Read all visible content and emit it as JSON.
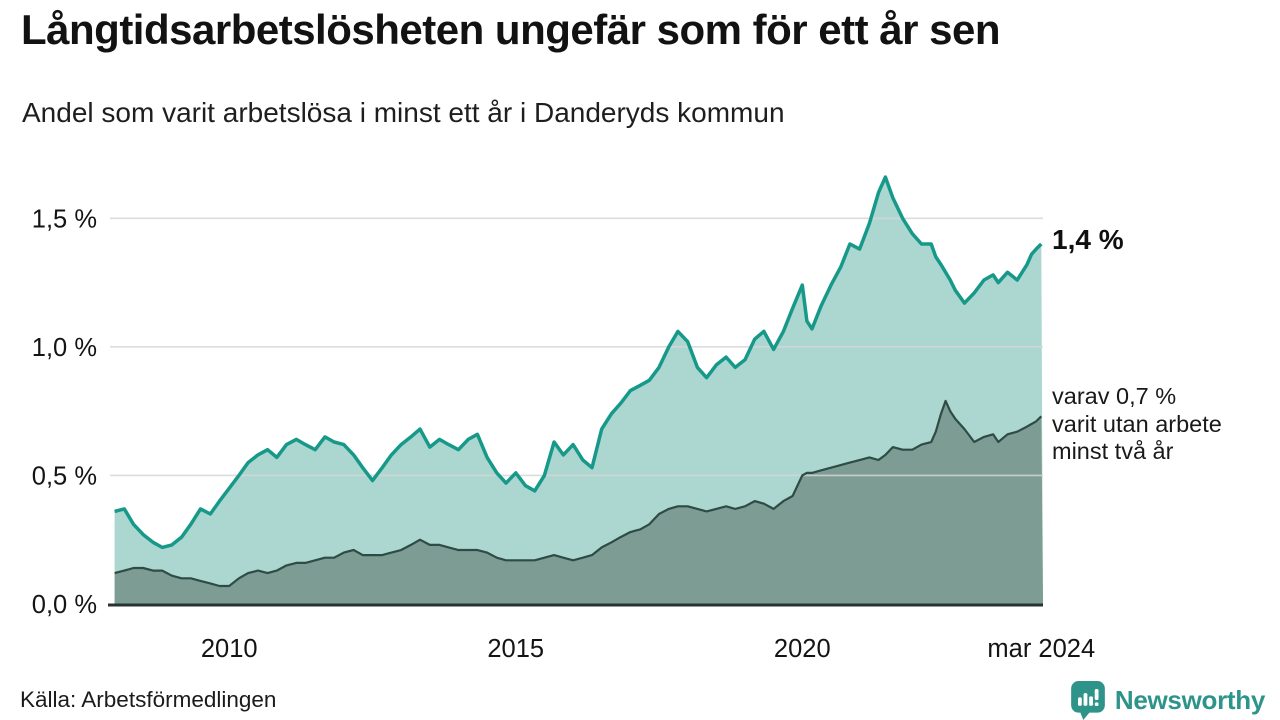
{
  "header": {
    "title": "Långtidsarbetslösheten ungefär som för ett år sen",
    "subtitle": "Andel som varit arbetslösa i minst ett år i Danderyds kommun"
  },
  "annotations": {
    "latest_total_label": "1,4 %",
    "note_lines": [
      "varav 0,7 %",
      "varit utan arbete",
      "minst två år"
    ]
  },
  "footer": {
    "source_label": "Källa: Arbetsförmedlingen"
  },
  "branding": {
    "wordmark": "Newsworthy",
    "icon": "bar-chart-speech-bubble-icon",
    "color": "#2e948a"
  },
  "colors": {
    "series1_line": "#17998a",
    "series1_fill": "#abd7d0",
    "series2_line": "#2e4c45",
    "series2_fill": "#7d9d94",
    "gridline": "#d6d6d6",
    "baseline": "#26332f",
    "text": "#141414"
  },
  "chart_data": {
    "type": "area",
    "title": "Långtidsarbetslösheten ungefär som för ett år sen",
    "subtitle": "Andel som varit arbetslösa i minst ett år i Danderyds kommun",
    "xlabel": "",
    "ylabel": "",
    "grid": "horizontal",
    "legend": "direct-labels-right",
    "x_axis": {
      "min": 2007.92,
      "max": 2024.2,
      "ticks": [
        {
          "value": 2010,
          "label": "2010"
        },
        {
          "value": 2015,
          "label": "2015"
        },
        {
          "value": 2020,
          "label": "2020"
        },
        {
          "value": 2024.17,
          "label": "mar 2024"
        }
      ]
    },
    "y_axis": {
      "min": 0,
      "max": 1.75,
      "ticks": [
        {
          "value": 0.0,
          "label": "0,0 %"
        },
        {
          "value": 0.5,
          "label": "0,5 %"
        },
        {
          "value": 1.0,
          "label": "1,0 %"
        },
        {
          "value": 1.5,
          "label": "1,5 %"
        }
      ]
    },
    "series": [
      {
        "name": "Andel arbetslösa minst ett år",
        "line_color": "#17998a",
        "fill_color": "#abd7d0",
        "line_width": 3.5,
        "latest_value_pct": 1.4
      },
      {
        "name": "varav utan arbete minst två år",
        "line_color": "#2e4c45",
        "fill_color": "#7d9d94",
        "line_width": 2.2,
        "latest_value_pct": 0.7
      }
    ],
    "columns": [
      "year_decimal",
      "share_min_one_year_pct",
      "share_min_two_years_pct"
    ],
    "points": [
      [
        2008.0,
        0.36,
        0.12
      ],
      [
        2008.17,
        0.37,
        0.13
      ],
      [
        2008.33,
        0.31,
        0.14
      ],
      [
        2008.5,
        0.27,
        0.14
      ],
      [
        2008.67,
        0.24,
        0.13
      ],
      [
        2008.83,
        0.22,
        0.13
      ],
      [
        2009.0,
        0.23,
        0.11
      ],
      [
        2009.17,
        0.26,
        0.1
      ],
      [
        2009.33,
        0.31,
        0.1
      ],
      [
        2009.5,
        0.37,
        0.09
      ],
      [
        2009.67,
        0.35,
        0.08
      ],
      [
        2009.83,
        0.4,
        0.07
      ],
      [
        2010.0,
        0.45,
        0.07
      ],
      [
        2010.17,
        0.5,
        0.1
      ],
      [
        2010.33,
        0.55,
        0.12
      ],
      [
        2010.5,
        0.58,
        0.13
      ],
      [
        2010.67,
        0.6,
        0.12
      ],
      [
        2010.83,
        0.57,
        0.13
      ],
      [
        2011.0,
        0.62,
        0.15
      ],
      [
        2011.17,
        0.64,
        0.16
      ],
      [
        2011.33,
        0.62,
        0.16
      ],
      [
        2011.5,
        0.6,
        0.17
      ],
      [
        2011.67,
        0.65,
        0.18
      ],
      [
        2011.83,
        0.63,
        0.18
      ],
      [
        2012.0,
        0.62,
        0.2
      ],
      [
        2012.17,
        0.58,
        0.21
      ],
      [
        2012.33,
        0.53,
        0.19
      ],
      [
        2012.5,
        0.48,
        0.19
      ],
      [
        2012.67,
        0.53,
        0.19
      ],
      [
        2012.83,
        0.58,
        0.2
      ],
      [
        2013.0,
        0.62,
        0.21
      ],
      [
        2013.17,
        0.65,
        0.23
      ],
      [
        2013.33,
        0.68,
        0.25
      ],
      [
        2013.5,
        0.61,
        0.23
      ],
      [
        2013.67,
        0.64,
        0.23
      ],
      [
        2013.83,
        0.62,
        0.22
      ],
      [
        2014.0,
        0.6,
        0.21
      ],
      [
        2014.17,
        0.64,
        0.21
      ],
      [
        2014.33,
        0.66,
        0.21
      ],
      [
        2014.5,
        0.57,
        0.2
      ],
      [
        2014.67,
        0.51,
        0.18
      ],
      [
        2014.83,
        0.47,
        0.17
      ],
      [
        2015.0,
        0.51,
        0.17
      ],
      [
        2015.17,
        0.46,
        0.17
      ],
      [
        2015.33,
        0.44,
        0.17
      ],
      [
        2015.5,
        0.5,
        0.18
      ],
      [
        2015.67,
        0.63,
        0.19
      ],
      [
        2015.83,
        0.58,
        0.18
      ],
      [
        2016.0,
        0.62,
        0.17
      ],
      [
        2016.17,
        0.56,
        0.18
      ],
      [
        2016.33,
        0.53,
        0.19
      ],
      [
        2016.5,
        0.68,
        0.22
      ],
      [
        2016.67,
        0.74,
        0.24
      ],
      [
        2016.83,
        0.78,
        0.26
      ],
      [
        2017.0,
        0.83,
        0.28
      ],
      [
        2017.17,
        0.85,
        0.29
      ],
      [
        2017.33,
        0.87,
        0.31
      ],
      [
        2017.5,
        0.92,
        0.35
      ],
      [
        2017.67,
        1.0,
        0.37
      ],
      [
        2017.83,
        1.06,
        0.38
      ],
      [
        2018.0,
        1.02,
        0.38
      ],
      [
        2018.17,
        0.92,
        0.37
      ],
      [
        2018.33,
        0.88,
        0.36
      ],
      [
        2018.5,
        0.93,
        0.37
      ],
      [
        2018.67,
        0.96,
        0.38
      ],
      [
        2018.83,
        0.92,
        0.37
      ],
      [
        2019.0,
        0.95,
        0.38
      ],
      [
        2019.17,
        1.03,
        0.4
      ],
      [
        2019.33,
        1.06,
        0.39
      ],
      [
        2019.5,
        0.99,
        0.37
      ],
      [
        2019.67,
        1.06,
        0.4
      ],
      [
        2019.83,
        1.15,
        0.42
      ],
      [
        2020.0,
        1.24,
        0.5
      ],
      [
        2020.08,
        1.1,
        0.51
      ],
      [
        2020.17,
        1.07,
        0.51
      ],
      [
        2020.33,
        1.16,
        0.52
      ],
      [
        2020.5,
        1.24,
        0.53
      ],
      [
        2020.67,
        1.31,
        0.54
      ],
      [
        2020.83,
        1.4,
        0.55
      ],
      [
        2021.0,
        1.38,
        0.56
      ],
      [
        2021.17,
        1.48,
        0.57
      ],
      [
        2021.33,
        1.6,
        0.56
      ],
      [
        2021.45,
        1.66,
        0.58
      ],
      [
        2021.58,
        1.58,
        0.61
      ],
      [
        2021.75,
        1.5,
        0.6
      ],
      [
        2021.92,
        1.44,
        0.6
      ],
      [
        2022.08,
        1.4,
        0.62
      ],
      [
        2022.25,
        1.4,
        0.63
      ],
      [
        2022.33,
        1.35,
        0.67
      ],
      [
        2022.42,
        1.32,
        0.74
      ],
      [
        2022.5,
        1.29,
        0.79
      ],
      [
        2022.58,
        1.26,
        0.75
      ],
      [
        2022.67,
        1.22,
        0.72
      ],
      [
        2022.83,
        1.17,
        0.68
      ],
      [
        2023.0,
        1.21,
        0.63
      ],
      [
        2023.17,
        1.26,
        0.65
      ],
      [
        2023.33,
        1.28,
        0.66
      ],
      [
        2023.42,
        1.25,
        0.63
      ],
      [
        2023.58,
        1.29,
        0.66
      ],
      [
        2023.75,
        1.26,
        0.67
      ],
      [
        2023.92,
        1.32,
        0.69
      ],
      [
        2024.0,
        1.36,
        0.7
      ],
      [
        2024.08,
        1.38,
        0.71
      ],
      [
        2024.17,
        1.4,
        0.73
      ]
    ]
  }
}
